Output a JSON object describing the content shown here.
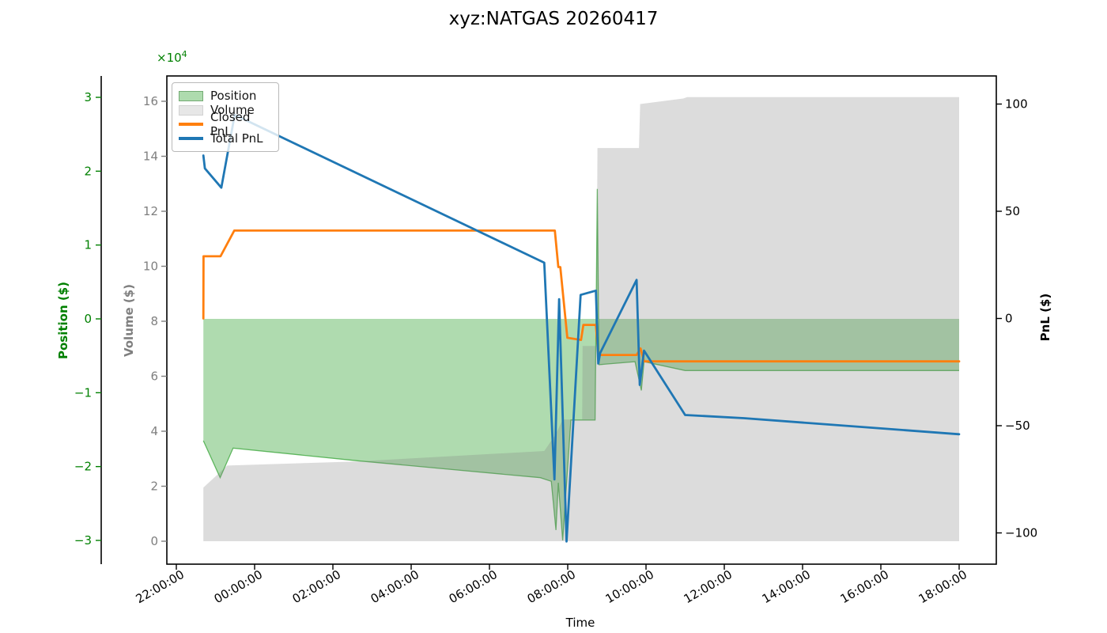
{
  "figure": {
    "title": "xyz:NATGAS 20260417"
  },
  "labels": {
    "time_axis": "Time",
    "position_axis": "Position ($)",
    "volume_axis": "Volume ($)",
    "pnl_axis": "PnL ($)",
    "offset_base": "×10",
    "offset_exp": "4"
  },
  "chart_data": {
    "type": "line",
    "title": "xyz:NATGAS 20260417",
    "xlabel": "Time",
    "x_axis": {
      "unit": "hours since 22:00:00",
      "tick_values": [
        0,
        2,
        4,
        6,
        8,
        10,
        12,
        14,
        16,
        18,
        20
      ],
      "tick_labels": [
        "22:00:00",
        "00:00:00",
        "02:00:00",
        "04:00:00",
        "06:00:00",
        "08:00:00",
        "10:00:00",
        "12:00:00",
        "14:00:00",
        "16:00:00",
        "18:00:00"
      ]
    },
    "y_axes": {
      "position": {
        "label": "Position ($)",
        "color": "#008000",
        "offset_text": "×10⁴",
        "tick_values": [
          3,
          2,
          1,
          0,
          -1,
          -2,
          -3
        ],
        "tick_labels": [
          "3",
          "2",
          "1",
          "0",
          "−1",
          "−2",
          "−3"
        ]
      },
      "volume": {
        "label": "Volume ($)",
        "color": "#7f7f7f",
        "scale_note": "×10⁴",
        "tick_values": [
          16,
          14,
          12,
          10,
          8,
          6,
          4,
          2,
          0
        ],
        "tick_labels": [
          "16",
          "14",
          "12",
          "10",
          "8",
          "6",
          "4",
          "2",
          "0"
        ]
      },
      "pnl": {
        "label": "PnL ($)",
        "color": "#000000",
        "tick_values": [
          100,
          50,
          0,
          -50,
          -100
        ],
        "tick_labels": [
          "100",
          "50",
          "0",
          "−50",
          "−100"
        ]
      }
    },
    "legend": {
      "items": [
        "Position",
        "Volume",
        "Closed PnL",
        "Total PnL"
      ],
      "position": "upper-left"
    },
    "series": [
      {
        "name": "Position",
        "type": "area",
        "axis": "position",
        "color": "#2ca02c",
        "fill_opacity": 0.38,
        "points": [
          [
            0.69,
            -1.65
          ],
          [
            1.12,
            -2.15
          ],
          [
            1.45,
            -1.75
          ],
          [
            4.6,
            -1.92
          ],
          [
            9.3,
            -2.15
          ],
          [
            9.58,
            -2.2
          ],
          [
            9.7,
            -2.86
          ],
          [
            9.76,
            -2.22
          ],
          [
            9.87,
            -3.0
          ],
          [
            10.08,
            -1.37
          ],
          [
            10.7,
            -1.37
          ],
          [
            10.755,
            1.76
          ],
          [
            10.8,
            -0.62
          ],
          [
            11.72,
            -0.58
          ],
          [
            11.88,
            -0.97
          ],
          [
            11.95,
            -0.58
          ],
          [
            13.0,
            -0.7
          ],
          [
            20.0,
            -0.7
          ]
        ]
      },
      {
        "name": "Volume",
        "type": "area",
        "axis": "volume",
        "color": "#808080",
        "fill_opacity": 0.28,
        "points": [
          [
            0.69,
            1.95
          ],
          [
            1.3,
            2.75
          ],
          [
            4.6,
            2.9
          ],
          [
            9.4,
            3.28
          ],
          [
            9.7,
            3.9
          ],
          [
            9.87,
            4.43
          ],
          [
            10.37,
            4.43
          ],
          [
            10.38,
            7.1
          ],
          [
            10.73,
            7.1
          ],
          [
            10.76,
            14.3
          ],
          [
            11.82,
            14.3
          ],
          [
            11.85,
            15.9
          ],
          [
            12.95,
            16.1
          ],
          [
            13.05,
            16.15
          ],
          [
            20.0,
            16.15
          ]
        ]
      },
      {
        "name": "Closed PnL",
        "type": "line",
        "axis": "pnl",
        "color": "#ff7f0e",
        "points": [
          [
            0.69,
            0
          ],
          [
            0.695,
            29
          ],
          [
            1.13,
            29
          ],
          [
            1.48,
            41
          ],
          [
            9.67,
            41
          ],
          [
            9.76,
            24
          ],
          [
            9.81,
            24
          ],
          [
            9.99,
            -9
          ],
          [
            10.34,
            -10
          ],
          [
            10.4,
            -3
          ],
          [
            10.72,
            -3
          ],
          [
            10.78,
            -17
          ],
          [
            11.76,
            -17
          ],
          [
            11.86,
            -14
          ],
          [
            11.95,
            -20
          ],
          [
            20.0,
            -20
          ]
        ]
      },
      {
        "name": "Total PnL",
        "type": "line",
        "axis": "pnl",
        "color": "#1f77b4",
        "points": [
          [
            0.69,
            76
          ],
          [
            0.73,
            70
          ],
          [
            1.15,
            61
          ],
          [
            1.49,
            95
          ],
          [
            9.4,
            26
          ],
          [
            9.66,
            -75
          ],
          [
            9.78,
            9
          ],
          [
            9.97,
            -104
          ],
          [
            10.33,
            11
          ],
          [
            10.72,
            13
          ],
          [
            10.78,
            -21
          ],
          [
            10.83,
            -16
          ],
          [
            11.76,
            18
          ],
          [
            11.84,
            -31
          ],
          [
            11.95,
            -15
          ],
          [
            13.0,
            -45
          ],
          [
            14.5,
            -46.5
          ],
          [
            20.0,
            -54
          ]
        ]
      }
    ]
  }
}
